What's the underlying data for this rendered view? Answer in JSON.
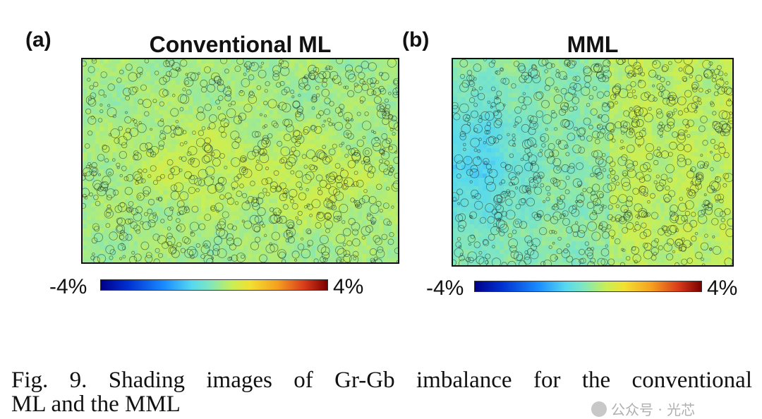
{
  "figure": {
    "panel_a": {
      "label": "(a)",
      "title": "Conventional ML",
      "colorbar_min": "-4%",
      "colorbar_max": "4%"
    },
    "panel_b": {
      "label": "(b)",
      "title": "MML",
      "colorbar_min": "-4%",
      "colorbar_max": "4%"
    },
    "caption_line1": "Fig. 9.  Shading images of  Gr-Gb imbalance for the conventional",
    "caption_line2": "ML and the MML",
    "watermark": "公众号 · 光芯"
  },
  "colors": {
    "cmap": [
      "#00008b",
      "#0030d0",
      "#1a8cff",
      "#55d8f0",
      "#7fe6c0",
      "#c8ef55",
      "#f2e032",
      "#f5a020",
      "#d83a1a",
      "#7a0000"
    ]
  }
}
